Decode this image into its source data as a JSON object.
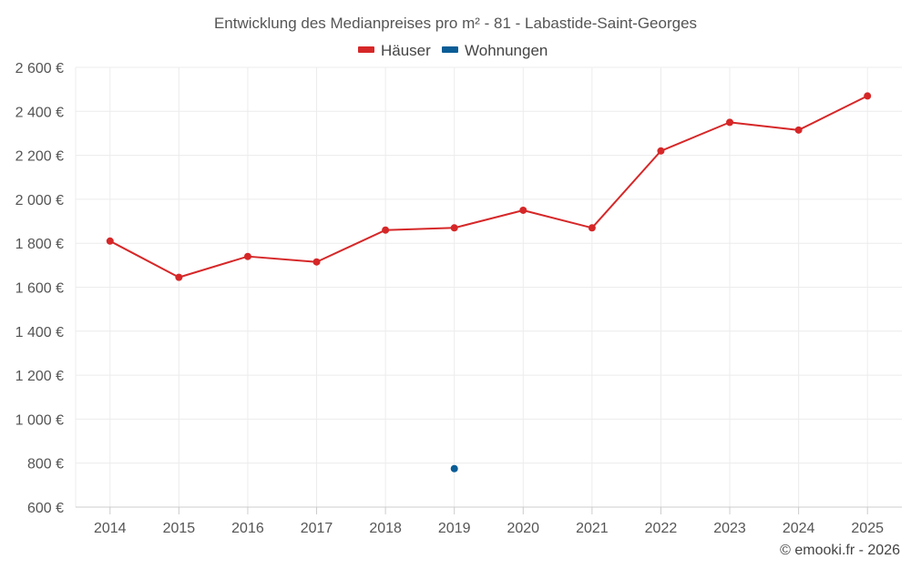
{
  "chart_data": {
    "type": "line",
    "title": "Entwicklung des Medianpreises pro m² - 81 - Labastide-Saint-Georges",
    "categories": [
      "2014",
      "2015",
      "2016",
      "2017",
      "2018",
      "2019",
      "2020",
      "2021",
      "2022",
      "2023",
      "2024",
      "2025"
    ],
    "series": [
      {
        "name": "Häuser",
        "color": "#d62728",
        "values": [
          1810,
          1645,
          1740,
          1715,
          1860,
          1870,
          1950,
          1870,
          2220,
          2350,
          2315,
          2470
        ]
      },
      {
        "name": "Wohnungen",
        "color": "#0a5d96",
        "values": [
          null,
          null,
          null,
          null,
          null,
          775,
          null,
          null,
          null,
          null,
          null,
          null
        ]
      }
    ],
    "ylim": [
      600,
      2600
    ],
    "yticks": [
      {
        "value": 600,
        "label": "600 €"
      },
      {
        "value": 800,
        "label": "800 €"
      },
      {
        "value": 1000,
        "label": "1 000 €"
      },
      {
        "value": 1200,
        "label": "1 200 €"
      },
      {
        "value": 1400,
        "label": "1 400 €"
      },
      {
        "value": 1600,
        "label": "1 600 €"
      },
      {
        "value": 1800,
        "label": "1 800 €"
      },
      {
        "value": 2000,
        "label": "2 000 €"
      },
      {
        "value": 2200,
        "label": "2 200 €"
      },
      {
        "value": 2400,
        "label": "2 400 €"
      },
      {
        "value": 2600,
        "label": "2 600 €"
      }
    ],
    "xlabel": "",
    "ylabel": "",
    "grid": true,
    "legend_position": "top-center"
  },
  "credit": "© emooki.fr - 2026"
}
